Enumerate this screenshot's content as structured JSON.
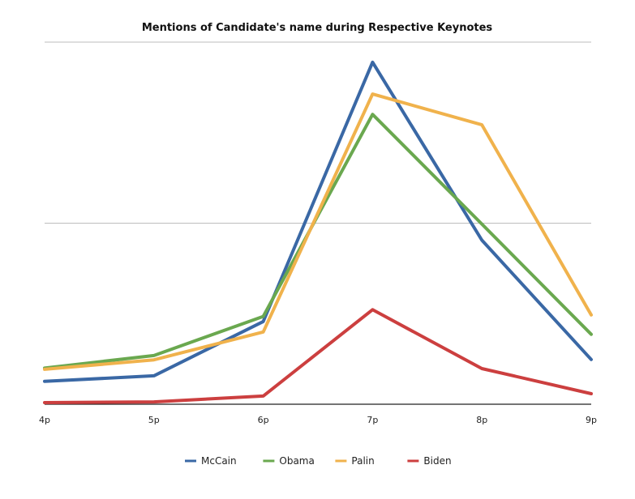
{
  "chart_data": {
    "type": "line",
    "title": "Mentions of Candidate's name during Respective Keynotes",
    "xlabel": "",
    "ylabel": "",
    "categories": [
      "4p",
      "5p",
      "6p",
      "7p",
      "8p",
      "9p"
    ],
    "ylim": [
      0,
      2
    ],
    "grid": true,
    "y_ticks_labeled": false,
    "legend_position": "bottom",
    "series": [
      {
        "name": "McCain",
        "color": "#3a68a5",
        "values": [
          0.126,
          0.157,
          0.457,
          1.889,
          0.906,
          0.247
        ]
      },
      {
        "name": "Obama",
        "color": "#6aa84f",
        "values": [
          0.2,
          0.269,
          0.485,
          1.601,
          0.995,
          0.386
        ]
      },
      {
        "name": "Palin",
        "color": "#f0b24c",
        "values": [
          0.193,
          0.245,
          0.399,
          1.713,
          1.543,
          0.493
        ]
      },
      {
        "name": "Biden",
        "color": "#cc3f3f",
        "values": [
          0.009,
          0.013,
          0.045,
          0.522,
          0.197,
          0.058
        ]
      }
    ]
  }
}
